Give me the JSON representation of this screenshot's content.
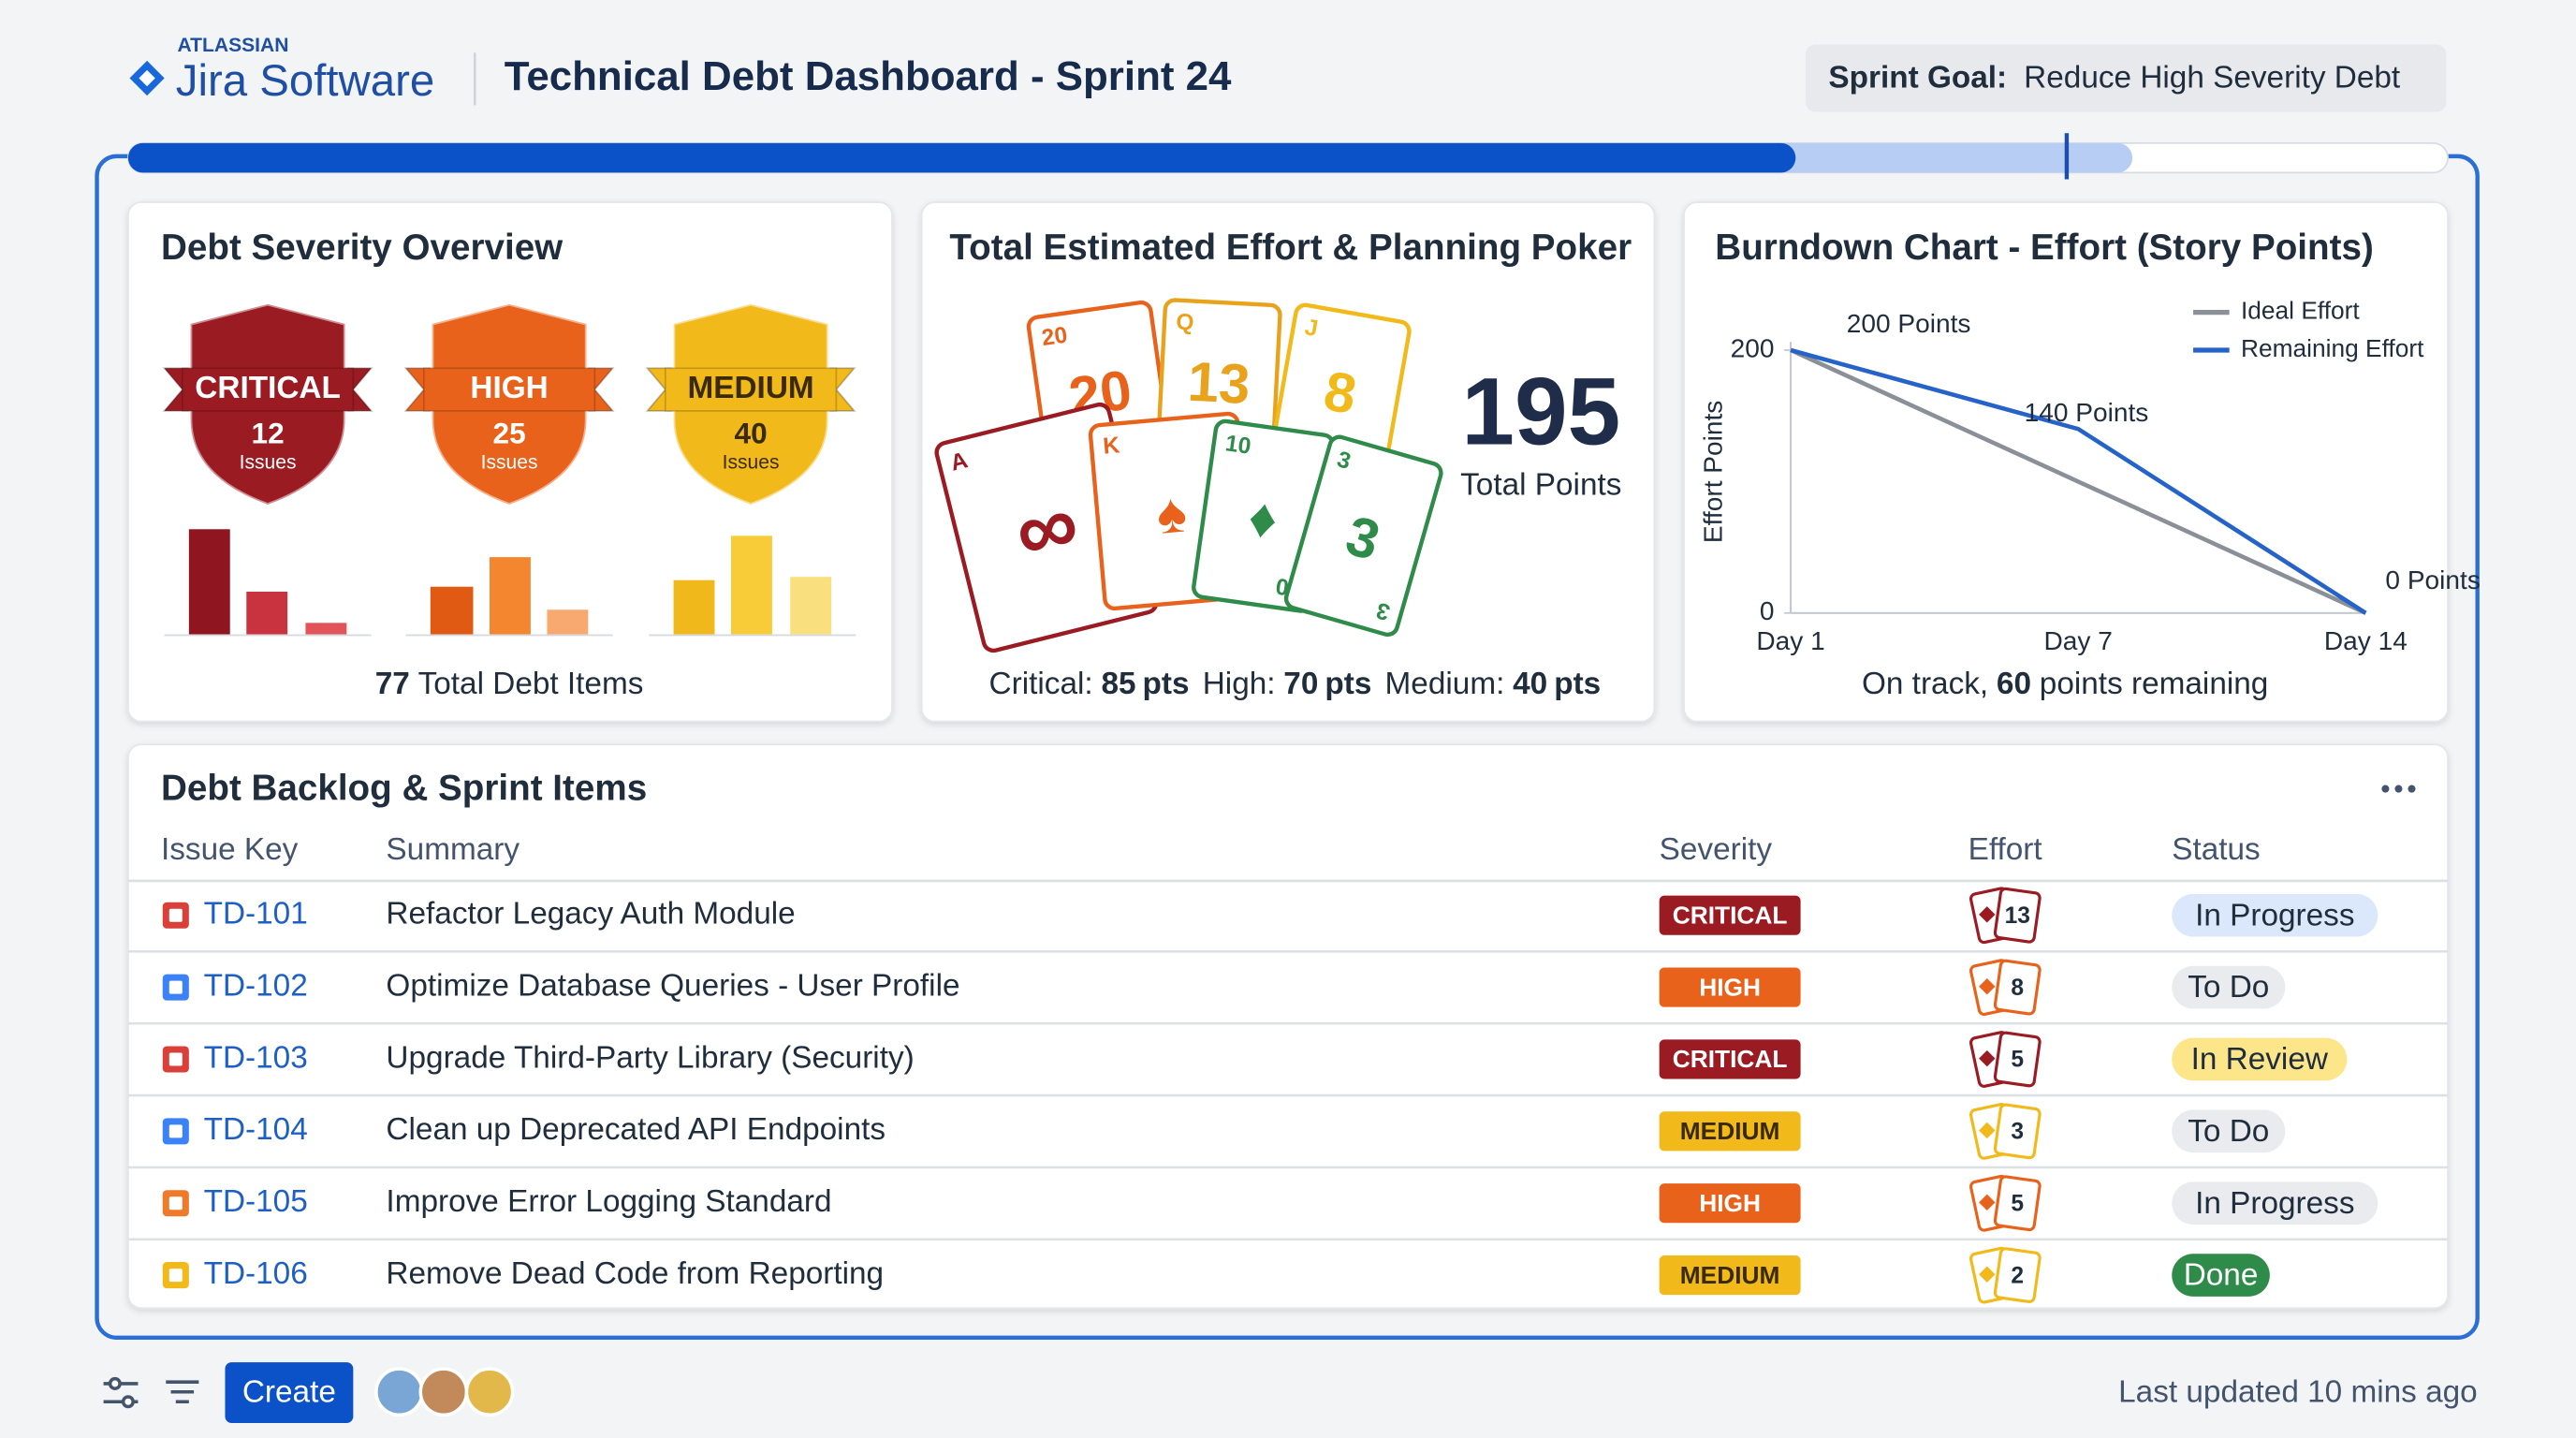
{
  "header": {
    "brand_top": "ATLASSIAN",
    "brand": "Jira Software",
    "title": "Technical Debt Dashboard - Sprint 24",
    "goal_label": "Sprint Goal:",
    "goal": "Reduce High Severity Debt"
  },
  "severity": {
    "title": "Debt Severity Overview",
    "items": [
      {
        "label": "CRITICAL",
        "count": 12,
        "unit": "Issues",
        "color": "#9b1b22",
        "text_color": "#ffffff"
      },
      {
        "label": "HIGH",
        "count": 25,
        "unit": "Issues",
        "color": "#e8621c",
        "text_color": "#ffffff"
      },
      {
        "label": "MEDIUM",
        "count": 40,
        "unit": "Issues",
        "color": "#f2b91b",
        "text_color": "#3a2a00"
      }
    ],
    "total": 77,
    "total_label": "Total Debt Items"
  },
  "effort": {
    "title": "Total Estimated Effort & Planning Poker",
    "total": 195,
    "total_label": "Total Points",
    "breakdown": [
      {
        "label": "Critical:",
        "value": 85,
        "unit": "pts"
      },
      {
        "label": "High:",
        "value": 70,
        "unit": "pts"
      },
      {
        "label": "Medium:",
        "value": 40,
        "unit": "pts"
      }
    ],
    "cards": [
      {
        "rank": "20",
        "face": "20",
        "color": "#e8621c"
      },
      {
        "rank": "Q",
        "face": "13",
        "color": "#e8a21c"
      },
      {
        "rank": "J",
        "face": "8",
        "color": "#f2b91b"
      },
      {
        "rank": "A",
        "face": "∞",
        "color": "#9b1b22"
      },
      {
        "rank": "K",
        "face": "♠",
        "color": "#e8621c"
      },
      {
        "rank": "10",
        "face": "♦",
        "color": "#2e8b4a"
      },
      {
        "rank": "3",
        "face": "3",
        "color": "#2e8b4a"
      }
    ]
  },
  "burndown": {
    "type": "line",
    "title": "Burndown Chart - Effort (Story Points)",
    "y_label": "Effort Points",
    "categories": [
      "Day 1",
      "Day 7",
      "Day 14"
    ],
    "ylim": [
      0,
      200
    ],
    "yticks": [
      0,
      200
    ],
    "series": [
      {
        "name": "Ideal Effort",
        "color": "#8a8f98",
        "values": [
          200,
          100,
          0
        ]
      },
      {
        "name": "Remaining Effort",
        "color": "#2563c9",
        "values": [
          200,
          140,
          0
        ],
        "value_labels": [
          "200 Points",
          "140 Points",
          "0 Points"
        ]
      }
    ],
    "note": [
      "On track,",
      60,
      "points remaining"
    ]
  },
  "backlog": {
    "title": "Debt Backlog & Sprint Items",
    "columns": [
      "Issue Key",
      "Summary",
      "Severity",
      "Effort",
      "Status"
    ],
    "rows": [
      {
        "key": "TD-101",
        "summary": "Refactor Legacy Auth Module",
        "severity": "CRITICAL",
        "effort": 13,
        "status": "In Progress",
        "icon_color": "#d9403a",
        "status_fill": "#dbe8fb",
        "status_ink": "#1f2d3d"
      },
      {
        "key": "TD-102",
        "summary": "Optimize Database Queries - User Profile",
        "severity": "HIGH",
        "effort": 8,
        "status": "To Do",
        "icon_color": "#3b82f6",
        "status_fill": "#e9ebee",
        "status_ink": "#1f2d3d"
      },
      {
        "key": "TD-103",
        "summary": "Upgrade Third-Party Library (Security)",
        "severity": "CRITICAL",
        "effort": 5,
        "status": "In Review",
        "icon_color": "#d9403a",
        "status_fill": "#fde58a",
        "status_ink": "#1f2d3d"
      },
      {
        "key": "TD-104",
        "summary": "Clean up Deprecated API Endpoints",
        "severity": "MEDIUM",
        "effort": 3,
        "status": "To Do",
        "icon_color": "#3b82f6",
        "status_fill": "#e9ebee",
        "status_ink": "#1f2d3d"
      },
      {
        "key": "TD-105",
        "summary": "Improve Error Logging Standard",
        "severity": "HIGH",
        "effort": 5,
        "status": "In Progress",
        "icon_color": "#ef7a2a",
        "status_fill": "#e9ebee",
        "status_ink": "#1f2d3d"
      },
      {
        "key": "TD-106",
        "summary": "Remove Dead Code from Reporting",
        "severity": "MEDIUM",
        "effort": 2,
        "status": "Done",
        "icon_color": "#f2b91b",
        "status_fill": "#2e8b4a",
        "status_ink": "#ffffff"
      }
    ]
  },
  "footer": {
    "create": "Create",
    "updated": "Last updated 10 mins ago"
  }
}
